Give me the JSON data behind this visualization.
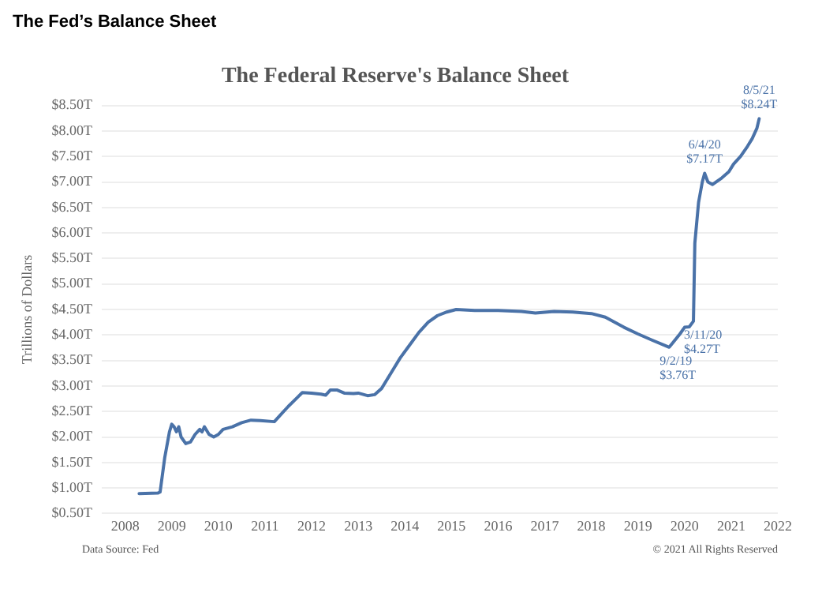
{
  "chart_data": {
    "type": "line",
    "title": "The Fed’s Balance Sheet",
    "subtitle": "The Federal Reserve's Balance Sheet",
    "ylabel": "Trillions of Dollars",
    "x": [
      2008.3,
      2008.7,
      2008.75,
      2008.85,
      2008.95,
      2009.0,
      2009.05,
      2009.1,
      2009.15,
      2009.2,
      2009.3,
      2009.4,
      2009.5,
      2009.6,
      2009.65,
      2009.7,
      2009.8,
      2009.9,
      2010.0,
      2010.1,
      2010.3,
      2010.5,
      2010.7,
      2010.9,
      2011.2,
      2011.35,
      2011.5,
      2011.7,
      2011.8,
      2012.0,
      2012.2,
      2012.3,
      2012.4,
      2012.55,
      2012.7,
      2012.9,
      2013.0,
      2013.2,
      2013.35,
      2013.5,
      2013.7,
      2013.9,
      2014.1,
      2014.3,
      2014.5,
      2014.7,
      2014.9,
      2015.1,
      2015.5,
      2016.0,
      2016.5,
      2016.8,
      2017.2,
      2017.6,
      2018.0,
      2018.3,
      2018.7,
      2019.0,
      2019.3,
      2019.67,
      2019.75,
      2019.9,
      2020.0,
      2020.1,
      2020.19,
      2020.22,
      2020.3,
      2020.38,
      2020.43,
      2020.5,
      2020.6,
      2020.8,
      2020.95,
      2021.05,
      2021.2,
      2021.35,
      2021.45,
      2021.55,
      2021.6
    ],
    "series": [
      {
        "color": "#4a72a8",
        "values": [
          0.89,
          0.9,
          0.92,
          1.6,
          2.1,
          2.25,
          2.2,
          2.1,
          2.2,
          2.0,
          1.87,
          1.9,
          2.05,
          2.15,
          2.1,
          2.2,
          2.05,
          2.0,
          2.05,
          2.15,
          2.2,
          2.28,
          2.33,
          2.32,
          2.3,
          2.45,
          2.6,
          2.78,
          2.87,
          2.86,
          2.84,
          2.82,
          2.92,
          2.92,
          2.86,
          2.85,
          2.86,
          2.81,
          2.83,
          2.95,
          3.25,
          3.55,
          3.8,
          4.05,
          4.25,
          4.38,
          4.45,
          4.5,
          4.48,
          4.48,
          4.46,
          4.43,
          4.46,
          4.45,
          4.42,
          4.35,
          4.15,
          4.02,
          3.9,
          3.76,
          3.85,
          4.02,
          4.15,
          4.16,
          4.27,
          5.8,
          6.6,
          7.0,
          7.17,
          7.0,
          6.95,
          7.08,
          7.2,
          7.35,
          7.5,
          7.7,
          7.85,
          8.05,
          8.24
        ]
      }
    ],
    "xlim": [
      2007.5,
      2022
    ],
    "xticks": [
      2008,
      2009,
      2010,
      2011,
      2012,
      2013,
      2014,
      2015,
      2016,
      2017,
      2018,
      2019,
      2020,
      2021,
      2022
    ],
    "ylim": [
      0.5,
      8.5
    ],
    "yticks": [
      {
        "value": 0.5,
        "label": "$0.50T"
      },
      {
        "value": 1,
        "label": "$1.00T"
      },
      {
        "value": 1.5,
        "label": "$1.50T"
      },
      {
        "value": 2,
        "label": "$2.00T"
      },
      {
        "value": 2.5,
        "label": "$2.50T"
      },
      {
        "value": 3,
        "label": "$3.00T"
      },
      {
        "value": 3.5,
        "label": "$3.50T"
      },
      {
        "value": 4,
        "label": "$4.00T"
      },
      {
        "value": 4.5,
        "label": "$4.50T"
      },
      {
        "value": 5,
        "label": "$5.00T"
      },
      {
        "value": 5.5,
        "label": "$5.50T"
      },
      {
        "value": 6,
        "label": "$6.00T"
      },
      {
        "value": 6.5,
        "label": "$6.50T"
      },
      {
        "value": 7,
        "label": "$7.00T"
      },
      {
        "value": 7.5,
        "label": "$7.50T"
      },
      {
        "value": 8,
        "label": "$8.00T"
      },
      {
        "value": 8.5,
        "label": "$8.50T"
      }
    ],
    "grid": "y",
    "legend": false,
    "marker": "none",
    "line_style": "solid",
    "annotations": [
      {
        "text": "9/2/19 $3.76T",
        "x": 2019.67,
        "y": 3.76
      },
      {
        "text": "3/11/20 $4.27T",
        "x": 2020.19,
        "y": 4.27
      },
      {
        "text": "6/4/20 $7.17T",
        "x": 2020.43,
        "y": 7.17
      },
      {
        "text": "8/5/21 $8.24T",
        "x": 2021.6,
        "y": 8.24
      },
      "Data Source: Fed",
      "© 2021 All Rights Reserved"
    ]
  }
}
